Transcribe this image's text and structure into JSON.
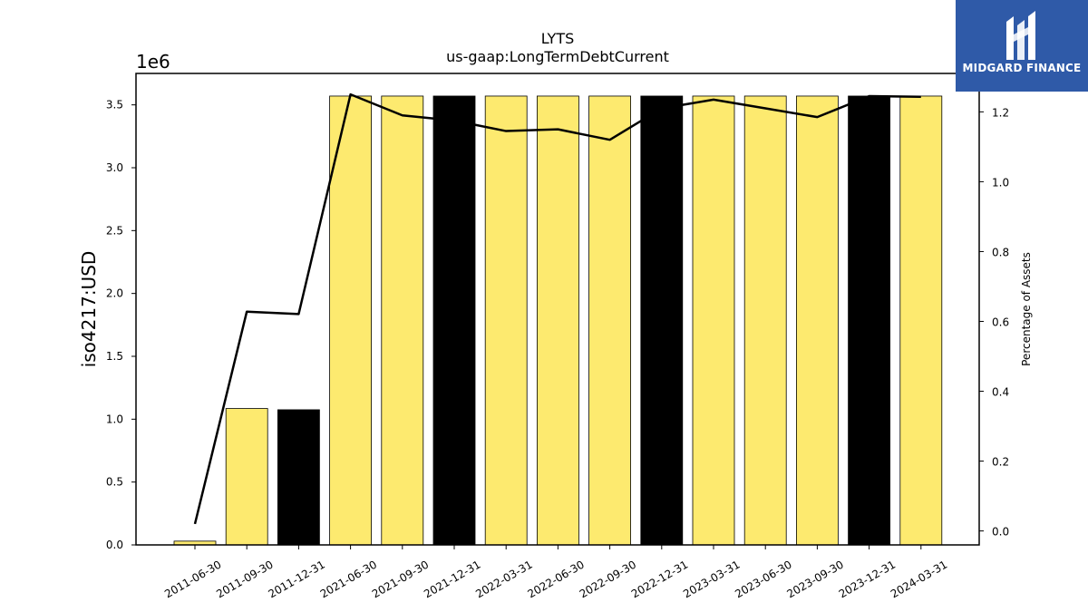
{
  "chart_data": {
    "type": "bar",
    "title": "LYTS",
    "subtitle": "us-gaap:LongTermDebtCurrent",
    "ylabel": "iso4217:USD",
    "y_offset_label": "1e6",
    "y2label": "Percentage of Assets",
    "ylim": [
      0,
      3750000
    ],
    "y2lim": [
      -0.04,
      1.31
    ],
    "yticks": [
      "0.0",
      "0.5",
      "1.0",
      "1.5",
      "2.0",
      "2.5",
      "3.0",
      "3.5"
    ],
    "y2ticks": [
      "0.0",
      "0.2",
      "0.4",
      "0.6",
      "0.8",
      "1.0",
      "1.2"
    ],
    "categories": [
      "2011-06-30",
      "2011-09-30",
      "2011-12-31",
      "2021-06-30",
      "2021-09-30",
      "2021-12-31",
      "2022-03-31",
      "2022-06-30",
      "2022-09-30",
      "2022-12-31",
      "2023-03-31",
      "2023-06-30",
      "2023-09-30",
      "2023-12-31",
      "2024-03-31"
    ],
    "series": [
      {
        "type": "bar",
        "values": [
          30000,
          1085000,
          1075000,
          3570000,
          3570000,
          3570000,
          3570000,
          3570000,
          3570000,
          3570000,
          3570000,
          3570000,
          3570000,
          3570000,
          3570000
        ],
        "fill_colors": [
          "#fdea6f",
          "#fdea6f",
          "#000000",
          "#fdea6f",
          "#fdea6f",
          "#000000",
          "#fdea6f",
          "#fdea6f",
          "#fdea6f",
          "#000000",
          "#fdea6f",
          "#fdea6f",
          "#fdea6f",
          "#000000",
          "#fdea6f"
        ]
      },
      {
        "type": "line",
        "axis": "right",
        "values": [
          0.02,
          0.628,
          0.621,
          1.25,
          1.19,
          1.175,
          1.145,
          1.15,
          1.12,
          1.21,
          1.235,
          1.21,
          1.185,
          1.245,
          1.243
        ]
      }
    ],
    "colors": {
      "bar_fill": "#fdea6f",
      "bar_fill_dark": "#000000",
      "line": "#000000"
    }
  },
  "logo": {
    "text": "MIDGARD FINANCE",
    "color": "#2f5aa8"
  }
}
